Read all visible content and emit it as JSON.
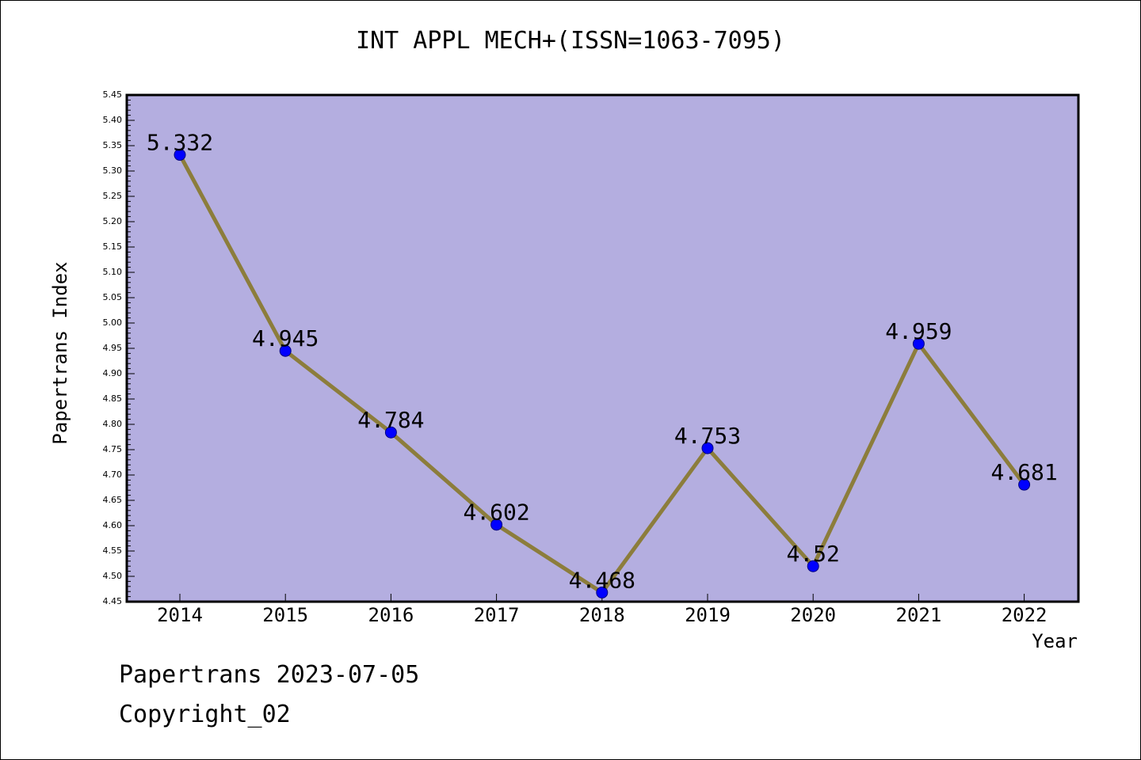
{
  "chart_data": {
    "type": "line",
    "title": "INT APPL MECH+(ISSN=1063-7095)",
    "xlabel": "Year",
    "ylabel": "Papertrans Index",
    "categories": [
      "2014",
      "2015",
      "2016",
      "2017",
      "2018",
      "2019",
      "2020",
      "2021",
      "2022"
    ],
    "values": [
      5.332,
      4.945,
      4.784,
      4.602,
      4.468,
      4.753,
      4.52,
      4.959,
      4.681
    ],
    "data_labels": [
      "5.332",
      "4.945",
      "4.784",
      "4.602",
      "4.468",
      "4.753",
      "4.52",
      "4.959",
      "4.681"
    ],
    "ylim": [
      4.45,
      5.45
    ],
    "yticks": [
      "4.45",
      "4.50",
      "4.55",
      "4.60",
      "4.65",
      "4.70",
      "4.75",
      "4.80",
      "4.85",
      "4.90",
      "4.95",
      "5.00",
      "5.05",
      "5.10",
      "5.15",
      "5.20",
      "5.25",
      "5.30",
      "5.35",
      "5.40",
      "5.45"
    ],
    "grid": false,
    "legend": "none",
    "colors": {
      "plot_background": "#b4aee0",
      "line": "#8c7d3c",
      "marker": "#0000ff"
    }
  },
  "footer": {
    "line1": "Papertrans 2023-07-05",
    "line2": "Copyright_02"
  }
}
